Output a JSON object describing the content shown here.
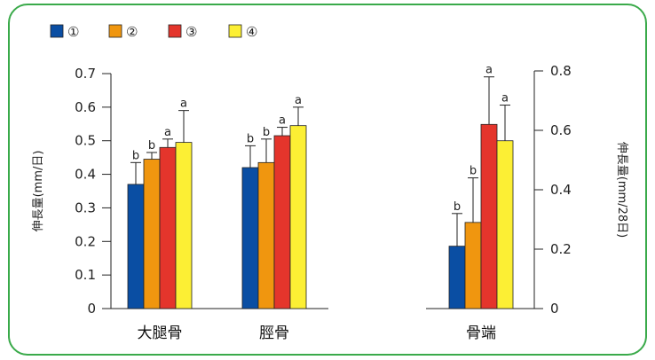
{
  "legend": {
    "entries": [
      {
        "label": "①",
        "color": "#0a4ea3"
      },
      {
        "label": "②",
        "color": "#f0960f"
      },
      {
        "label": "③",
        "color": "#e4352c"
      },
      {
        "label": "④",
        "color": "#fcef34"
      }
    ]
  },
  "chart_data": [
    {
      "type": "bar",
      "ylabel": "伸長量(mm/日)",
      "ylim": [
        0,
        0.7
      ],
      "yticks": [
        "0.7",
        "0.6",
        "0.5",
        "0.4",
        "0.3",
        "0.2",
        "0.1",
        "0"
      ],
      "categories": [
        "大腿骨",
        "脛骨"
      ],
      "series": [
        {
          "name": "①",
          "values": [
            0.37,
            0.42
          ],
          "errors": [
            0.065,
            0.065
          ],
          "labels": [
            "b",
            "b"
          ]
        },
        {
          "name": "②",
          "values": [
            0.445,
            0.435
          ],
          "errors": [
            0.02,
            0.07
          ],
          "labels": [
            "b",
            "b"
          ]
        },
        {
          "name": "③",
          "values": [
            0.48,
            0.515
          ],
          "errors": [
            0.025,
            0.025
          ],
          "labels": [
            "a",
            "a"
          ]
        },
        {
          "name": "④",
          "values": [
            0.495,
            0.545
          ],
          "errors": [
            0.095,
            0.055
          ],
          "labels": [
            "a",
            "a"
          ]
        }
      ]
    },
    {
      "type": "bar",
      "ylabel": "伸長量(mm/28日)",
      "ylim": [
        0,
        0.8
      ],
      "yticks": [
        "0.8",
        "0.6",
        "0.4",
        "0.2",
        "0"
      ],
      "categories": [
        "骨端"
      ],
      "series": [
        {
          "name": "①",
          "values": [
            0.21
          ],
          "errors": [
            0.11
          ],
          "labels": [
            "b"
          ]
        },
        {
          "name": "②",
          "values": [
            0.29
          ],
          "errors": [
            0.15
          ],
          "labels": [
            "b"
          ]
        },
        {
          "name": "③",
          "values": [
            0.62
          ],
          "errors": [
            0.16
          ],
          "labels": [
            "a"
          ]
        },
        {
          "name": "④",
          "values": [
            0.565
          ],
          "errors": [
            0.12
          ],
          "labels": [
            "a"
          ]
        }
      ]
    }
  ]
}
